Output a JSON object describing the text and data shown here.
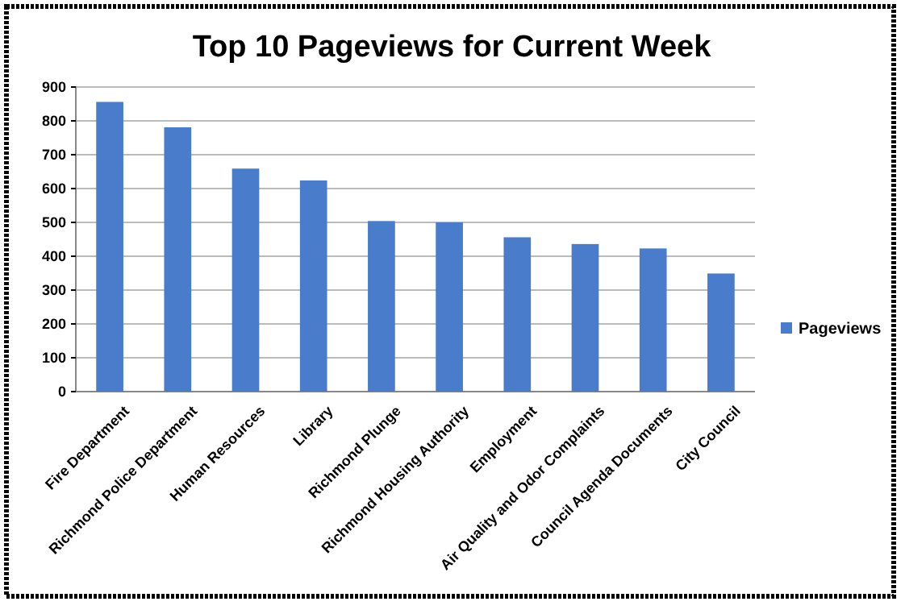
{
  "chart_data": {
    "type": "bar",
    "title": "Top 10 Pageviews for Current Week",
    "categories": [
      "Fire Department",
      "Richmond Police Department",
      "Human Resources",
      "Library",
      "Richmond Plunge",
      "Richmond Housing Authority",
      "Employment",
      "Air Quality and Odor Complaints",
      "Council Agenda Documents",
      "City Council"
    ],
    "series": [
      {
        "name": "Pageviews",
        "color": "#4a7ccc",
        "values": [
          856,
          781,
          659,
          624,
          504,
          500,
          456,
          436,
          423,
          349
        ]
      }
    ],
    "ylim": [
      0,
      900
    ],
    "yticks": [
      0,
      100,
      200,
      300,
      400,
      500,
      600,
      700,
      800,
      900
    ],
    "grid": "y",
    "legend": "right"
  }
}
